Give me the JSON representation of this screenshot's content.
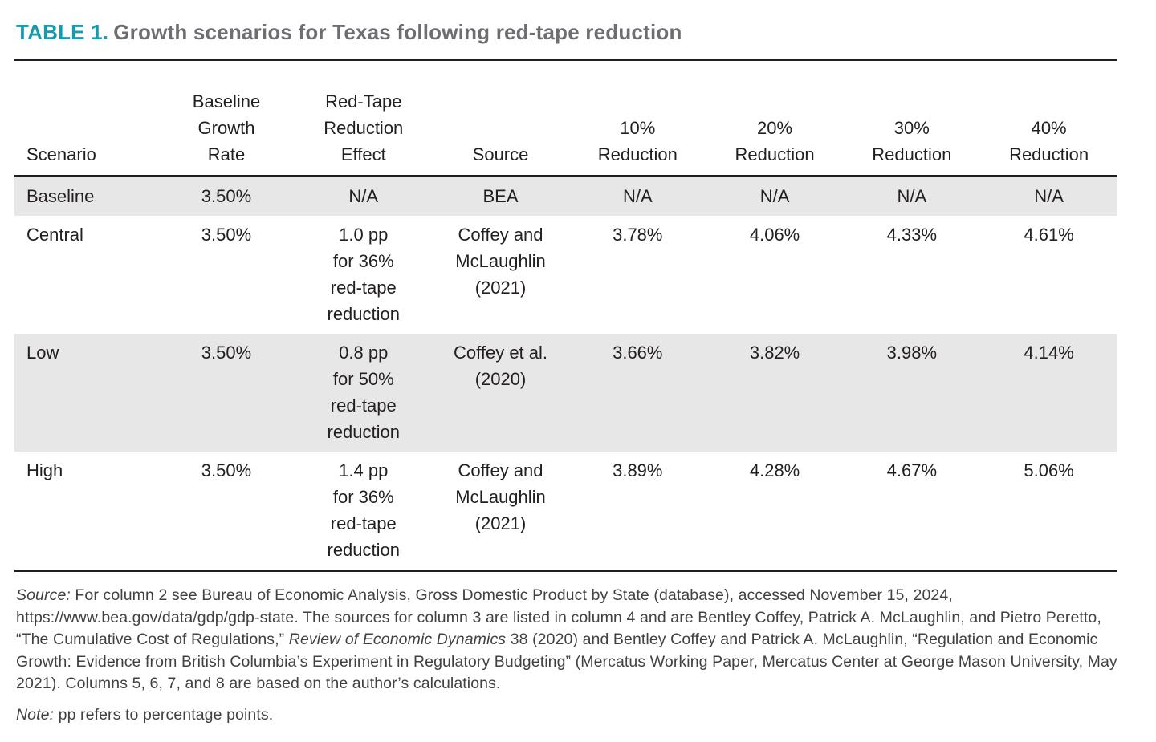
{
  "title": {
    "label": "TABLE 1.",
    "text": "Growth scenarios for Texas following red-tape reduction"
  },
  "table": {
    "columns": [
      "Scenario",
      "Baseline\nGrowth\nRate",
      "Red-Tape\nReduction\nEffect",
      "Source",
      "10%\nReduction",
      "20%\nReduction",
      "30%\nReduction",
      "40%\nReduction"
    ],
    "rows": [
      {
        "shaded": true,
        "cells": [
          "Baseline",
          "3.50%",
          "N/A",
          "BEA",
          "N/A",
          "N/A",
          "N/A",
          "N/A"
        ]
      },
      {
        "shaded": false,
        "cells": [
          "Central",
          "3.50%",
          "1.0 pp\nfor 36%\nred-tape\nreduction",
          "Coffey and\nMcLaughlin\n(2021)",
          "3.78%",
          "4.06%",
          "4.33%",
          "4.61%"
        ]
      },
      {
        "shaded": true,
        "cells": [
          "Low",
          "3.50%",
          "0.8 pp\nfor 50%\nred-tape\nreduction",
          "Coffey et al.\n(2020)",
          "3.66%",
          "3.82%",
          "3.98%",
          "4.14%"
        ]
      },
      {
        "shaded": false,
        "cells": [
          "High",
          "3.50%",
          "1.4 pp\nfor 36%\nred-tape\nreduction",
          "Coffey and\nMcLaughlin\n(2021)",
          "3.89%",
          "4.28%",
          "4.67%",
          "5.06%"
        ]
      }
    ]
  },
  "footnotes": {
    "source": {
      "segments": [
        {
          "text": "Source:",
          "style": "italic"
        },
        {
          "text": " For column 2 see Bureau of Economic Analysis, Gross Domestic Product by State (database), accessed November 15, 2024, https://www.bea.gov/data/gdp/gdp-state. The sources for column 3 are listed in column 4 and are Bentley Coffey, Patrick A. McLaughlin, and Pietro Peretto, “The Cumulative Cost of Regulations,” ",
          "style": "normal"
        },
        {
          "text": "Review of Economic Dynamics",
          "style": "italic"
        },
        {
          "text": " 38 (2020) and Bentley Coffey and Patrick A. McLaughlin, “Regulation and Economic Growth: Evidence from British Columbia’s Experiment in Regulatory Budgeting” (Mercatus Working Paper, Mercatus Center at George Mason University, May 2021). Columns 5, 6, 7, and 8 are based on the author’s calculations.",
          "style": "normal"
        }
      ]
    },
    "note": {
      "segments": [
        {
          "text": "Note:",
          "style": "italic"
        },
        {
          "text": " pp refers to percentage points.",
          "style": "normal"
        }
      ]
    }
  },
  "colors": {
    "accent_teal": "#169bac",
    "title_gray": "#6d6e71",
    "text_dark": "#231f20",
    "footnote_gray": "#414042",
    "row_shade": "#e8e7e7"
  }
}
